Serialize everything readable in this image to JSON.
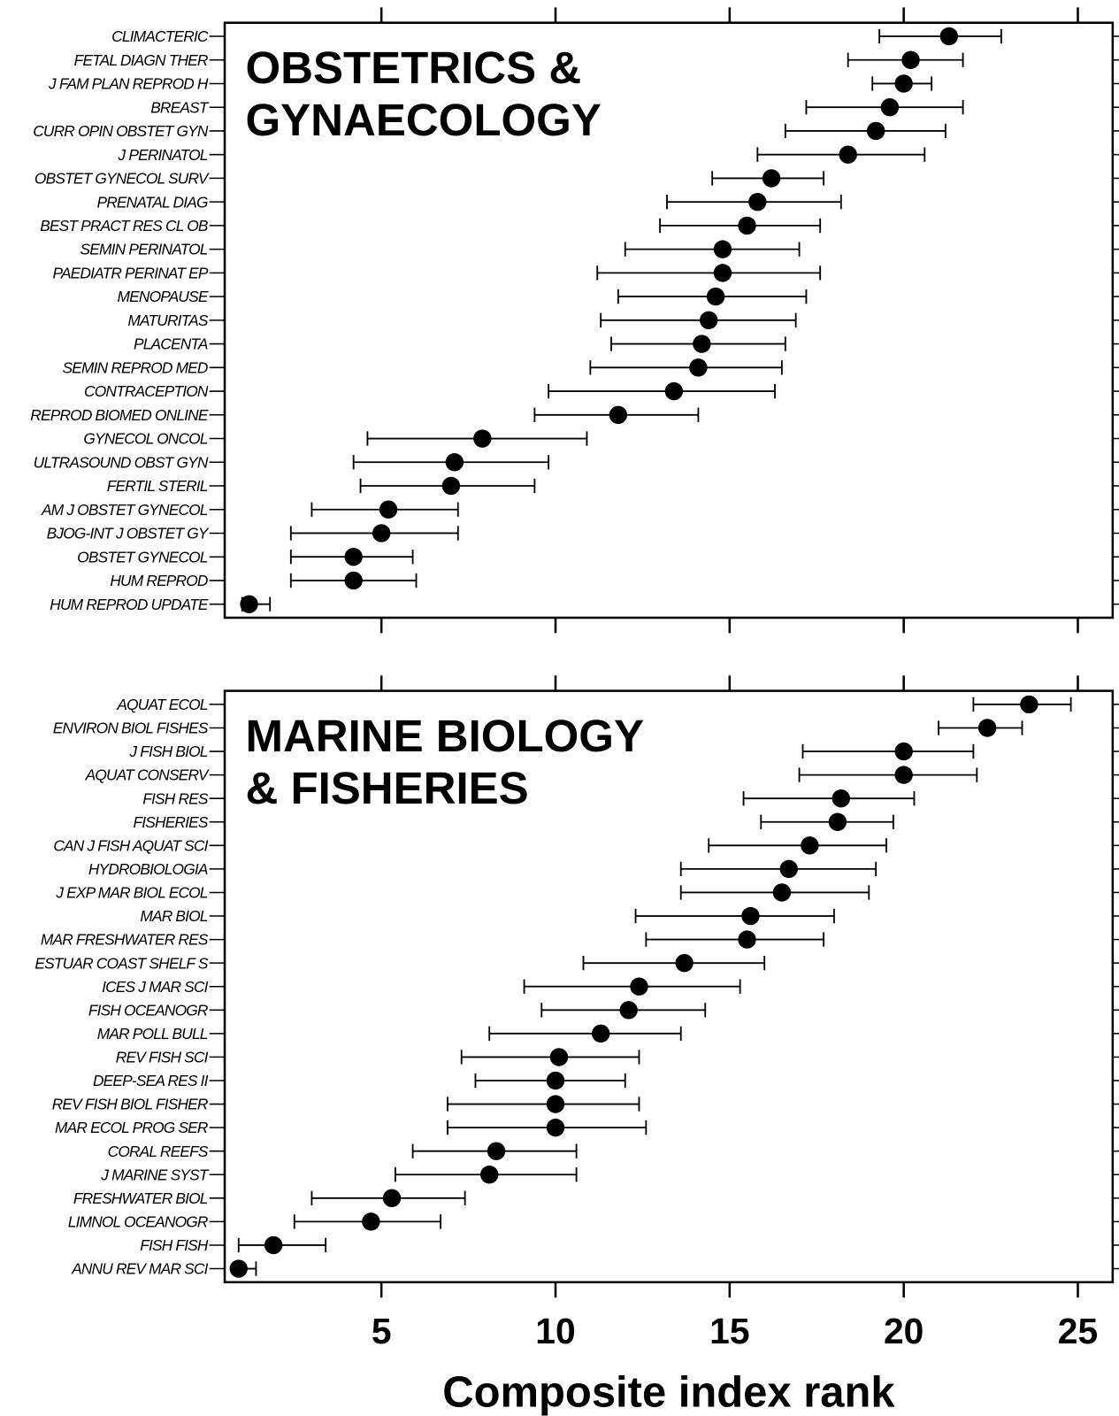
{
  "chart_data": [
    {
      "type": "errorbar",
      "annotation": [
        "OBSTETRICS &",
        "GYNAECOLOGY"
      ],
      "categories": [
        "CLIMACTERIC",
        "FETAL DIAGN THER",
        "J FAM PLAN REPROD H",
        "BREAST",
        "CURR OPIN OBSTET GYN",
        "J PERINATOL",
        "OBSTET GYNECOL SURV",
        "PRENATAL DIAG",
        "BEST PRACT RES CL OB",
        "SEMIN PERINATOL",
        "PAEDIATR PERINAT EP",
        "MENOPAUSE",
        "MATURITAS",
        "PLACENTA",
        "SEMIN REPROD MED",
        "CONTRACEPTION",
        "REPROD BIOMED ONLINE",
        "GYNECOL ONCOL",
        "ULTRASOUND OBST GYN",
        "FERTIL STERIL",
        "AM J OBSTET GYNECOL",
        "BJOG-INT J OBSTET GY",
        "OBSTET GYNECOL",
        "HUM REPROD",
        "HUM REPROD UPDATE"
      ],
      "values": [
        21.3,
        20.2,
        20.0,
        19.6,
        19.2,
        18.4,
        16.2,
        15.8,
        15.5,
        14.8,
        14.8,
        14.6,
        14.4,
        14.2,
        14.1,
        13.4,
        11.8,
        7.9,
        7.1,
        7.0,
        5.2,
        5.0,
        4.2,
        4.2,
        1.2
      ],
      "lower": [
        19.3,
        18.4,
        19.1,
        17.2,
        16.6,
        15.8,
        14.5,
        13.2,
        13.0,
        12.0,
        11.2,
        11.8,
        11.3,
        11.6,
        11.0,
        9.8,
        9.4,
        4.6,
        4.2,
        4.4,
        3.0,
        2.4,
        2.4,
        2.4,
        1.0
      ],
      "upper": [
        22.8,
        21.7,
        20.8,
        21.7,
        21.2,
        20.6,
        17.7,
        18.2,
        17.6,
        17.0,
        17.6,
        17.2,
        16.9,
        16.6,
        16.5,
        16.3,
        14.1,
        10.9,
        9.8,
        9.4,
        7.2,
        7.2,
        5.9,
        6.0,
        1.8
      ],
      "color": "#000000",
      "xlim": [
        0.5,
        26
      ],
      "xticks": [
        5,
        10,
        15,
        20,
        25
      ]
    },
    {
      "type": "errorbar",
      "annotation": [
        "MARINE BIOLOGY",
        "& FISHERIES"
      ],
      "categories": [
        "AQUAT ECOL",
        "ENVIRON BIOL FISHES",
        "J FISH BIOL",
        "AQUAT CONSERV",
        "FISH RES",
        "FISHERIES",
        "CAN J FISH AQUAT SCI",
        "HYDROBIOLOGIA",
        "J EXP MAR BIOL ECOL",
        "MAR BIOL",
        "MAR FRESHWATER RES",
        "ESTUAR COAST SHELF S",
        "ICES J MAR SCI",
        "FISH OCEANOGR",
        "MAR POLL BULL",
        "REV FISH SCI",
        "DEEP-SEA RES II",
        "REV FISH BIOL FISHER",
        "MAR ECOL PROG SER",
        "CORAL REEFS",
        "J MARINE SYST",
        "FRESHWATER BIOL",
        "LIMNOL OCEANOGR",
        "FISH FISH",
        "ANNU REV MAR SCI"
      ],
      "values": [
        23.6,
        22.4,
        20.0,
        20.0,
        18.2,
        18.1,
        17.3,
        16.7,
        16.5,
        15.6,
        15.5,
        13.7,
        12.4,
        12.1,
        11.3,
        10.1,
        10.0,
        10.0,
        10.0,
        8.3,
        8.1,
        5.3,
        4.7,
        1.9,
        0.9
      ],
      "lower": [
        22.0,
        21.0,
        17.1,
        17.0,
        15.4,
        15.9,
        14.4,
        13.6,
        13.6,
        12.3,
        12.6,
        10.8,
        9.1,
        9.6,
        8.1,
        7.3,
        7.7,
        6.9,
        6.9,
        5.9,
        5.4,
        3.0,
        2.5,
        0.9,
        0.9
      ],
      "upper": [
        24.8,
        23.4,
        22.0,
        22.1,
        20.3,
        19.7,
        19.5,
        19.2,
        19.0,
        18.0,
        17.7,
        16.0,
        15.3,
        14.3,
        13.6,
        12.4,
        12.0,
        12.4,
        12.6,
        10.6,
        10.6,
        7.4,
        6.7,
        3.4,
        1.4
      ],
      "color": "#000000",
      "xlim": [
        0.5,
        26
      ],
      "xticks": [
        5,
        10,
        15,
        20,
        25
      ],
      "xlabel": "Composite index rank"
    }
  ]
}
